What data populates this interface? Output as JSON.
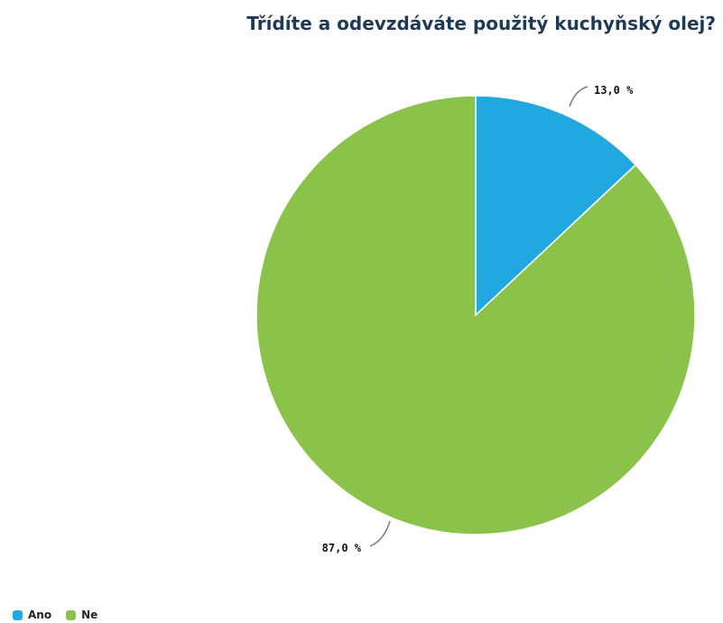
{
  "chart_data": {
    "type": "pie",
    "title": "Třídíte a odevzdáváte použitý kuchyňský olej?",
    "categories": [
      "Ano",
      "Ne"
    ],
    "values": [
      13.0,
      87.0
    ],
    "labels": [
      "13,0 %",
      "87,0 %"
    ],
    "colors": [
      "#21a8e0",
      "#8bc34a"
    ],
    "legend": "bottom-left"
  }
}
